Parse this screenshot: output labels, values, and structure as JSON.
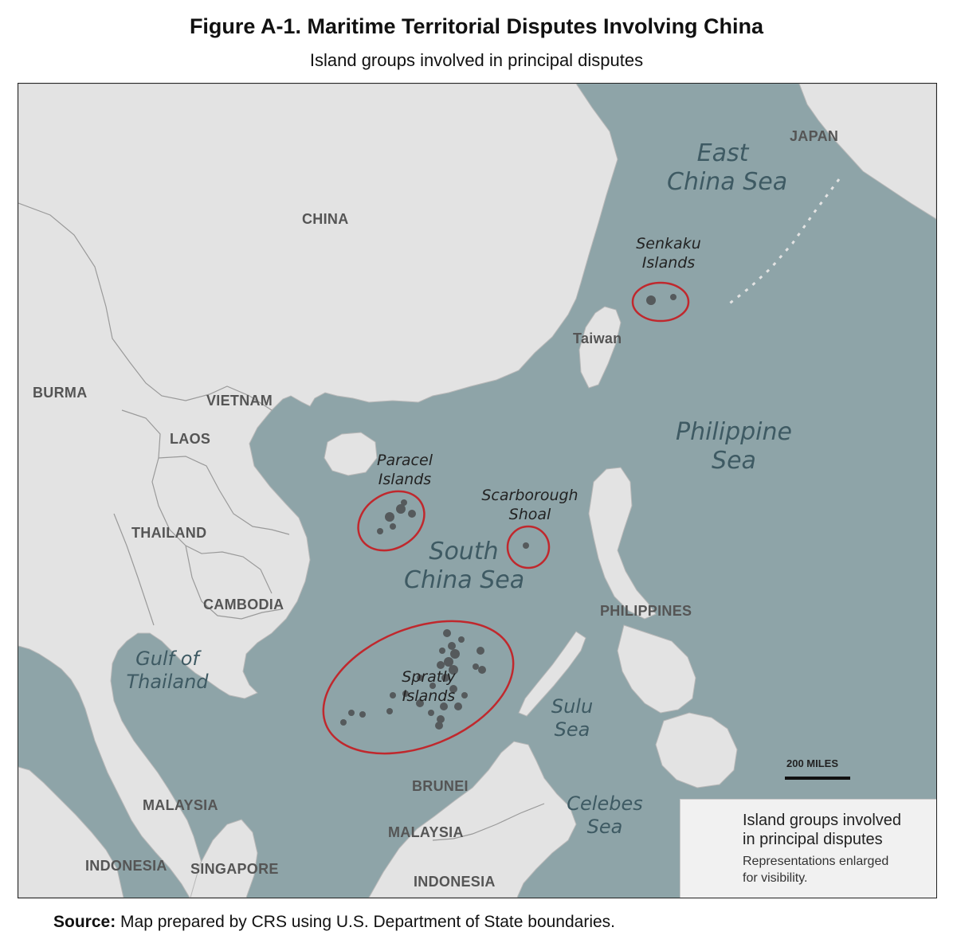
{
  "figure": {
    "title": "Figure A-1. Maritime Territorial Disputes Involving China",
    "subtitle": "Island groups involved in principal disputes"
  },
  "countries": {
    "china": "CHINA",
    "japan": "JAPAN",
    "taiwan": "Taiwan",
    "burma": "BURMA",
    "vietnam": "VIETNAM",
    "laos": "LAOS",
    "thailand": "THAILAND",
    "cambodia": "CAMBODIA",
    "philippines": "PHILIPPINES",
    "malaysia_west": "MALAYSIA",
    "malaysia_east": "MALAYSIA",
    "brunei": "BRUNEI",
    "indonesia_west": "INDONESIA",
    "indonesia_east": "INDONESIA",
    "singapore": "SINGAPORE"
  },
  "seas": {
    "east_china_sea_1": "East",
    "east_china_sea_2": "China Sea",
    "philippine_sea_1": "Philippine",
    "philippine_sea_2": "Sea",
    "south_china_sea_1": "South",
    "south_china_sea_2": "China Sea",
    "gulf_thailand_1": "Gulf of",
    "gulf_thailand_2": "Thailand",
    "sulu_sea_1": "Sulu",
    "sulu_sea_2": "Sea",
    "celebes_sea_1": "Celebes",
    "celebes_sea_2": "Sea"
  },
  "islands": {
    "senkaku_1": "Senkaku",
    "senkaku_2": "Islands",
    "paracel_1": "Paracel",
    "paracel_2": "Islands",
    "scarborough_1": "Scarborough",
    "scarborough_2": "Shoal",
    "spratly_1": "Spratly",
    "spratly_2": "Islands"
  },
  "scale": {
    "label": "200 MILES"
  },
  "legend": {
    "title_1": "Island groups involved",
    "title_2": "in principal disputes",
    "note_1": "Representations enlarged",
    "note_2": "for visibility."
  },
  "source": {
    "prefix": "Source:",
    "text": " Map prepared by CRS using U.S. Department of State boundaries."
  },
  "colors": {
    "sea": "#8ea4a8",
    "land": "#e3e3e3",
    "border": "#9a9a9a",
    "dispute_ring": "#c0282d",
    "island_dot": "#555a5c"
  }
}
